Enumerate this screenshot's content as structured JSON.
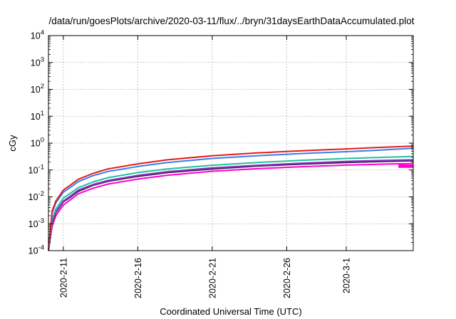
{
  "chart_data": {
    "type": "line",
    "title": "/data/run/goesPlots/archive/2020-03-11/flux/../bryn/31daysEarthDataAccumulated.plot",
    "xlabel": "Coordinated Universal Time (UTC)",
    "ylabel": "cGy",
    "y_scale": "log",
    "ylim": [
      0.0001,
      10000
    ],
    "xlim": [
      "2020-02-10T00:00",
      "2020-03-05T12:00"
    ],
    "grid": true,
    "legend": "none",
    "y_ticks": [
      {
        "value": 0.0001,
        "base": "10",
        "exp": "-4"
      },
      {
        "value": 0.001,
        "base": "10",
        "exp": "-3"
      },
      {
        "value": 0.01,
        "base": "10",
        "exp": "-2"
      },
      {
        "value": 0.1,
        "base": "10",
        "exp": "-1"
      },
      {
        "value": 1,
        "base": "10",
        "exp": "0"
      },
      {
        "value": 10,
        "base": "10",
        "exp": "1"
      },
      {
        "value": 100,
        "base": "10",
        "exp": "2"
      },
      {
        "value": 1000,
        "base": "10",
        "exp": "3"
      },
      {
        "value": 10000,
        "base": "10",
        "exp": "4"
      }
    ],
    "x_ticks": [
      {
        "value": "2020-02-11",
        "label": "2020-2-11"
      },
      {
        "value": "2020-02-16",
        "label": "2020-2-16"
      },
      {
        "value": "2020-02-21",
        "label": "2020-2-21"
      },
      {
        "value": "2020-02-26",
        "label": "2020-2-26"
      },
      {
        "value": "2020-03-01",
        "label": "2020-3-1"
      }
    ],
    "x": [
      "2020-02-10T00:00",
      "2020-02-10T06:00",
      "2020-02-10T12:00",
      "2020-02-11T00:00",
      "2020-02-11T12:00",
      "2020-02-12T00:00",
      "2020-02-13T00:00",
      "2020-02-14T00:00",
      "2020-02-16T00:00",
      "2020-02-18T00:00",
      "2020-02-21T00:00",
      "2020-02-24T00:00",
      "2020-02-27T00:00",
      "2020-03-01T00:00",
      "2020-03-03T00:00",
      "2020-03-05T12:00"
    ],
    "series": [
      {
        "color": "#e41a1c",
        "values": [
          0.0001,
          0.003,
          0.007,
          0.018,
          0.028,
          0.045,
          0.075,
          0.11,
          0.17,
          0.24,
          0.34,
          0.43,
          0.52,
          0.61,
          0.68,
          0.78
        ]
      },
      {
        "color": "#377eeb",
        "values": [
          0.0001,
          0.0025,
          0.006,
          0.015,
          0.023,
          0.037,
          0.062,
          0.088,
          0.135,
          0.19,
          0.27,
          0.34,
          0.41,
          0.48,
          0.54,
          0.65
        ]
      },
      {
        "color": "#20c0a0",
        "values": [
          0.0001,
          0.0015,
          0.0035,
          0.009,
          0.014,
          0.022,
          0.036,
          0.052,
          0.08,
          0.11,
          0.15,
          0.19,
          0.23,
          0.27,
          0.29,
          0.32
        ]
      },
      {
        "color": "#9030c0",
        "values": [
          0.0001,
          0.0012,
          0.0028,
          0.007,
          0.011,
          0.018,
          0.029,
          0.041,
          0.063,
          0.087,
          0.12,
          0.15,
          0.18,
          0.21,
          0.225,
          0.24
        ]
      },
      {
        "color": "#2a2a50",
        "values": [
          0.0001,
          0.0011,
          0.0026,
          0.0065,
          0.01,
          0.016,
          0.027,
          0.038,
          0.058,
          0.08,
          0.11,
          0.14,
          0.165,
          0.19,
          0.205,
          0.22
        ]
      },
      {
        "color": "#ff00d0",
        "values": [
          0.0001,
          0.0008,
          0.002,
          0.005,
          0.008,
          0.013,
          0.021,
          0.03,
          0.046,
          0.064,
          0.09,
          0.112,
          0.133,
          0.152,
          0.162,
          0.175
        ]
      }
    ],
    "annotation_band": {
      "color": "#ff00d0",
      "x_start": "2020-03-04T12:00",
      "x_end": "2020-03-05T12:00",
      "y_low": 0.12,
      "y_high": 0.16
    }
  }
}
